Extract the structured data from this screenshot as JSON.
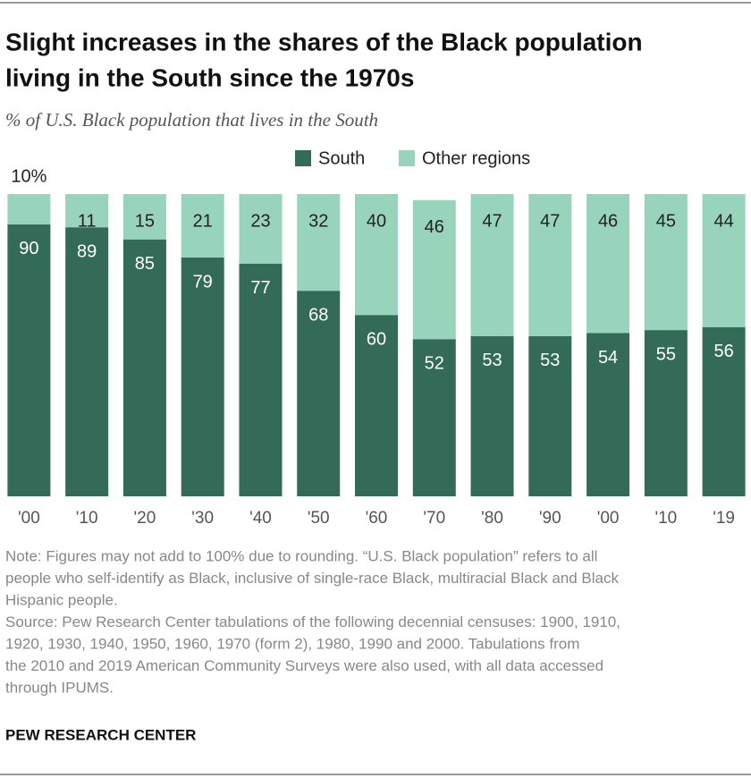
{
  "chart_data": {
    "type": "stacked_bar",
    "title": [
      "Slight increases in the shares of the Black population",
      "living in the South since the 1970s"
    ],
    "subtitle": "% of U.S. Black population that lives in the South",
    "categories": [
      "'00",
      "'10",
      "'20",
      "'30",
      "'40",
      "'50",
      "'60",
      "'70",
      "'80",
      "'90",
      "'00",
      "'10",
      "'19"
    ],
    "series": [
      {
        "name": "South",
        "color": "#336b58",
        "values": [
          90,
          89,
          85,
          79,
          77,
          68,
          60,
          52,
          53,
          53,
          54,
          55,
          56
        ]
      },
      {
        "name": "Other regions",
        "color": "#98d4bc",
        "values": [
          10,
          11,
          15,
          21,
          23,
          32,
          40,
          46,
          47,
          47,
          46,
          45,
          44
        ],
        "value_labels": [
          "10%",
          "11",
          "15",
          "21",
          "23",
          "32",
          "40",
          "46",
          "47",
          "47",
          "46",
          "45",
          "44"
        ]
      }
    ],
    "ylim": [
      0,
      100
    ],
    "note": [
      "Note: Figures may not add to 100% due to rounding. “U.S. Black population” refers to all",
      "people who self-identify as Black, inclusive of single-race Black, multiracial Black and Black",
      "Hispanic people."
    ],
    "source": [
      "Source: Pew Research Center tabulations of the following decennial censuses: 1900, 1910,",
      "1920, 1930, 1940, 1950, 1960, 1970 (form 2), 1980, 1990 and 2000. Tabulations from",
      "the 2010 and 2019 American Community Surveys were also used, with all data accessed",
      "through IPUMS."
    ],
    "credit": "PEW RESEARCH CENTER"
  }
}
